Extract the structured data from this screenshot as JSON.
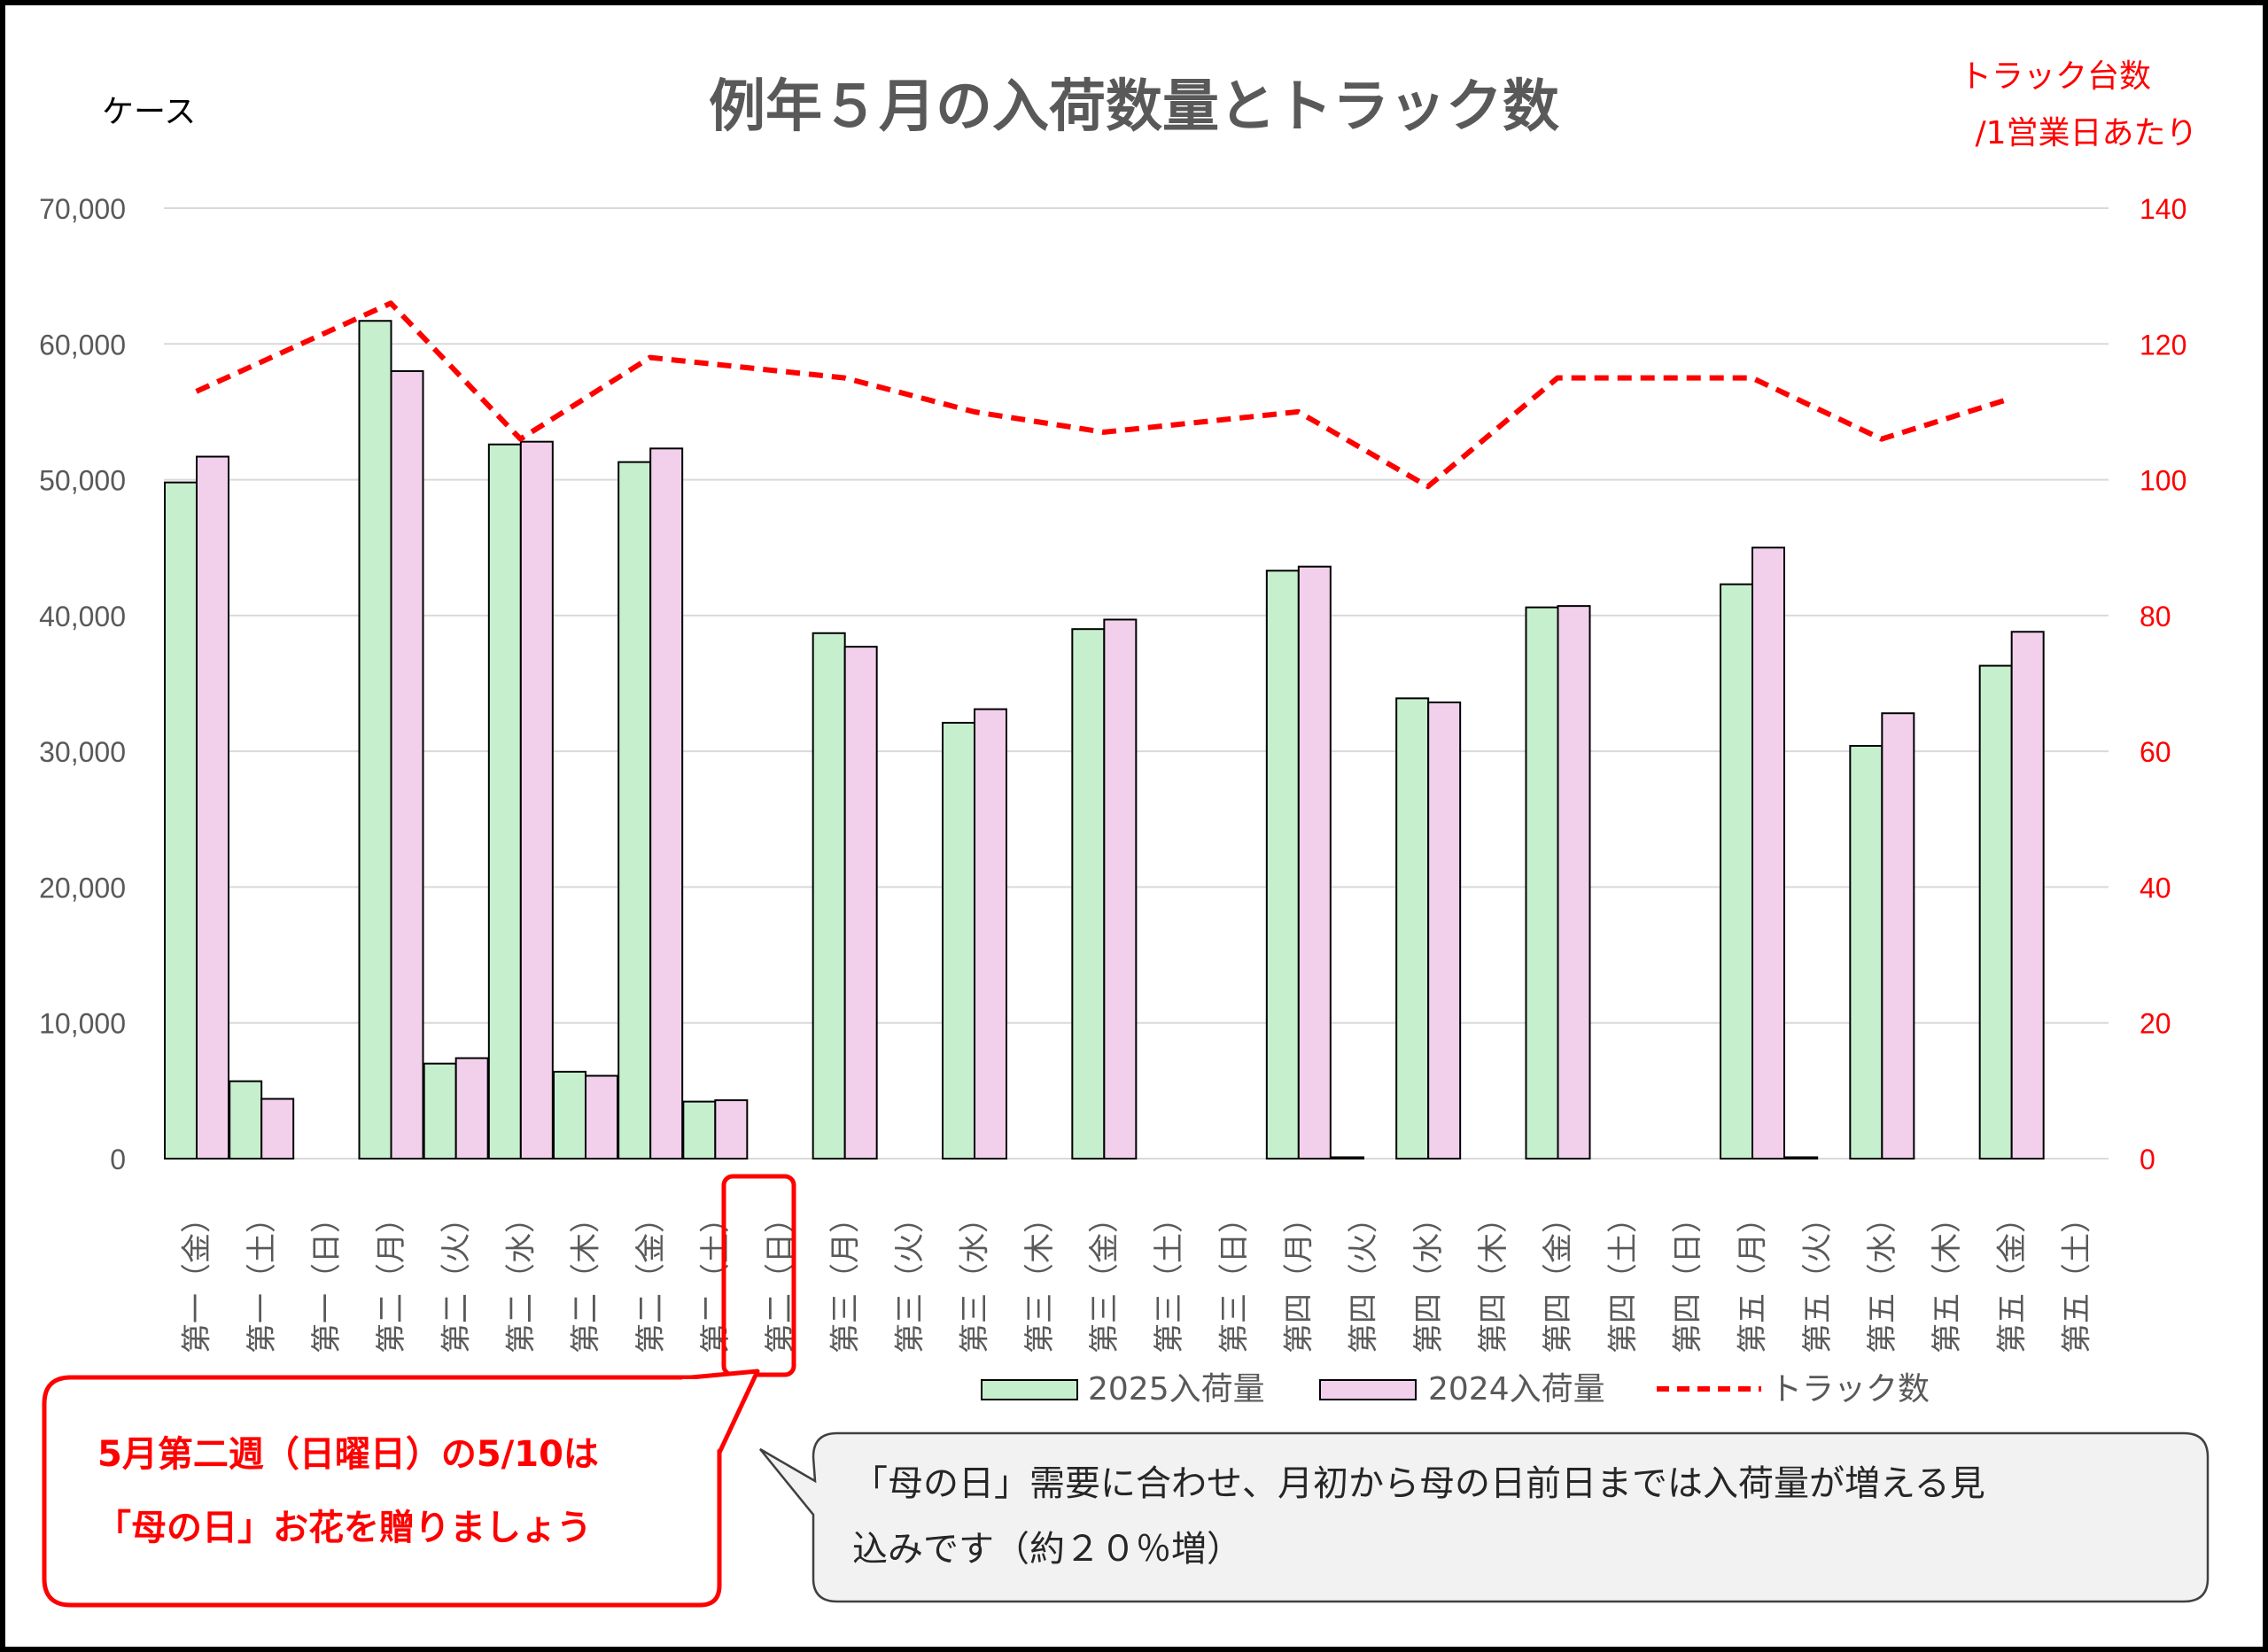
{
  "chart_data": {
    "type": "bar",
    "title": "例年５月の入荷数量とトラック数",
    "y_left_unit": "ケース",
    "y_right_unit": [
      "トラック台数",
      "/1営業日あたり"
    ],
    "ylim_left": [
      0,
      70000
    ],
    "ylim_right": [
      0,
      140
    ],
    "yticks_left": [
      "70,000",
      "60,000",
      "50,000",
      "40,000",
      "30,000",
      "20,000",
      "10,000",
      "0"
    ],
    "yticks_right": [
      "140",
      "120",
      "100",
      "80",
      "60",
      "40",
      "20",
      "0"
    ],
    "grid": true,
    "legend_position": "bottom",
    "categories": [
      "第一（金）",
      "第一（土）",
      "第一（日）",
      "第二（月）",
      "第二（火）",
      "第二（水）",
      "第二（木）",
      "第二（金）",
      "第二（土）",
      "第二（日）",
      "第三（月）",
      "第三（火）",
      "第三（水）",
      "第三（木）",
      "第三（金）",
      "第三（土）",
      "第三（日）",
      "第四（月）",
      "第四（火）",
      "第四（水）",
      "第四（木）",
      "第四（金）",
      "第四（土）",
      "第四（日）",
      "第五（月）",
      "第五（火）",
      "第五（水）",
      "第五（木）",
      "第五（金）",
      "第五（土）"
    ],
    "series": [
      {
        "name": "2025入荷量",
        "type": "bar",
        "axis": "left",
        "color": "#c6efce",
        "values": [
          49800,
          5700,
          0,
          61700,
          7000,
          52600,
          6400,
          51300,
          4200,
          0,
          38700,
          0,
          32100,
          0,
          39000,
          0,
          0,
          43300,
          100,
          33900,
          0,
          40600,
          0,
          0,
          42300,
          100,
          30400,
          0,
          36300,
          0
        ]
      },
      {
        "name": "2024入荷量",
        "type": "bar",
        "axis": "left",
        "color": "#f2d0ec",
        "values": [
          51700,
          4400,
          0,
          58000,
          7400,
          52800,
          6100,
          52300,
          4300,
          0,
          37700,
          0,
          33100,
          0,
          39700,
          0,
          0,
          43600,
          0,
          33600,
          0,
          40700,
          0,
          0,
          45000,
          0,
          32800,
          0,
          38800,
          0
        ]
      },
      {
        "name": "トラック数",
        "type": "line",
        "axis": "right",
        "color": "#ff0000",
        "dash": true,
        "points": [
          [
            0,
            113
          ],
          [
            3,
            126
          ],
          [
            5,
            106
          ],
          [
            7,
            118
          ],
          [
            10,
            115
          ],
          [
            12,
            110
          ],
          [
            14,
            107
          ],
          [
            17,
            110
          ],
          [
            19,
            99
          ],
          [
            21,
            115
          ],
          [
            24,
            115
          ],
          [
            26,
            106
          ],
          [
            28,
            112
          ]
        ]
      }
    ],
    "highlight_category": "第二（日）"
  },
  "callouts": {
    "left": [
      "5月第二週（日曜日）の5/10は",
      "「母の日」お花を贈りましょう"
    ],
    "right": [
      "「母の日」需要に合わせ、月初から母の日前日までは入荷量が増える見",
      "込みです（約２０％増）"
    ]
  },
  "colors": {
    "accent": "#ff0000",
    "grid": "#d9d9d9",
    "text": "#595959"
  }
}
